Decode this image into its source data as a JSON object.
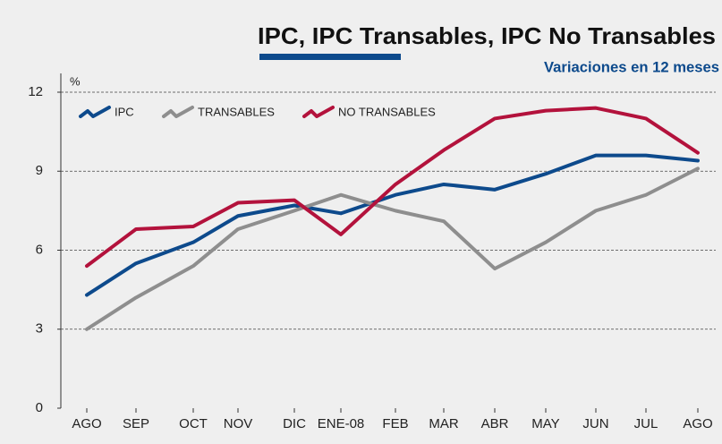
{
  "chart_data": {
    "type": "line",
    "title": "IPC, IPC Transables, IPC No Transables",
    "subtitle": "Variaciones en 12 meses",
    "y_label": "%",
    "categories": [
      "AGO",
      "SEP",
      "OCT",
      "NOV",
      "DIC",
      "ENE-08",
      "FEB",
      "MAR",
      "ABR",
      "MAY",
      "JUN",
      "JUL",
      "AGO"
    ],
    "series": [
      {
        "name": "IPC",
        "color": "#0d4a8c",
        "values": [
          4.3,
          5.5,
          6.3,
          7.3,
          7.7,
          7.4,
          8.1,
          8.5,
          8.3,
          8.9,
          9.6,
          9.6,
          9.4
        ]
      },
      {
        "name": "TRANSABLES",
        "color": "#8e8e8e",
        "values": [
          3.0,
          4.2,
          5.4,
          6.8,
          7.5,
          8.1,
          7.5,
          7.1,
          5.3,
          6.3,
          7.5,
          8.1,
          9.1
        ]
      },
      {
        "name": "NO TRANSABLES",
        "color": "#b3123c",
        "values": [
          5.4,
          6.8,
          6.9,
          7.8,
          7.9,
          6.6,
          8.5,
          9.8,
          11.0,
          11.3,
          11.4,
          11.0,
          9.7
        ]
      }
    ],
    "ylim": [
      0,
      12
    ],
    "yticks": [
      0,
      3,
      6,
      9,
      12
    ],
    "grid": true,
    "legend": "top-left"
  }
}
